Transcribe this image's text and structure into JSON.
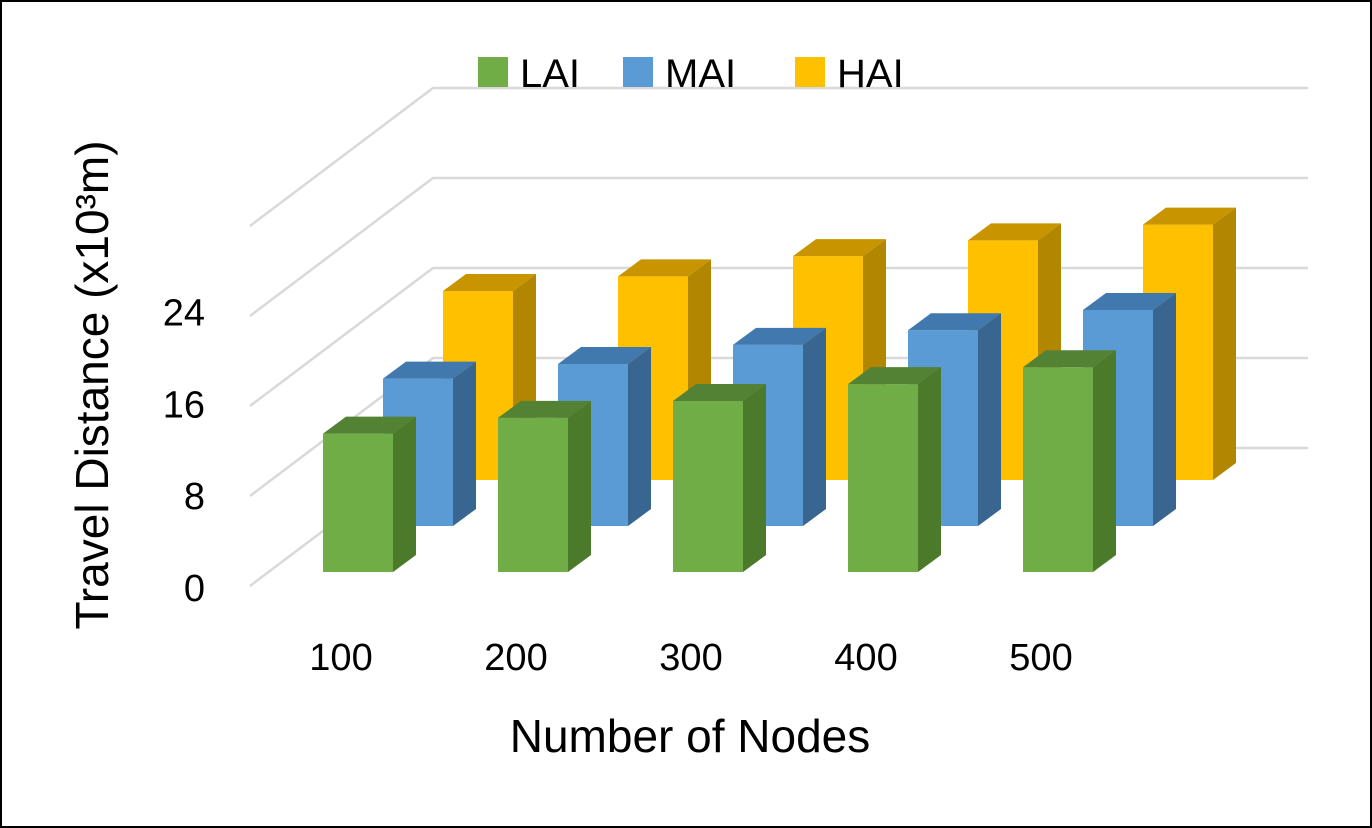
{
  "chart_data": {
    "type": "bar",
    "subtype": "3d-clustered-column",
    "title": "",
    "xlabel": "Number of Nodes",
    "ylabel": "Travel Distance (x10³m)",
    "categories": [
      "100",
      "200",
      "300",
      "400",
      "500"
    ],
    "yticks": [
      "0",
      "8",
      "16",
      "24"
    ],
    "ylim": [
      0,
      32
    ],
    "grid": true,
    "legend": "top-center",
    "series": [
      {
        "name": "LAI",
        "values": [
          12.3,
          13.7,
          15.2,
          16.7,
          18.2
        ],
        "color": "#70ad47",
        "side_color": "#4a7a2a",
        "top_color": "#548235"
      },
      {
        "name": "MAI",
        "values": [
          13.1,
          14.4,
          16.1,
          17.4,
          19.2
        ],
        "color": "#5b9bd5",
        "side_color": "#386690",
        "top_color": "#4178ae"
      },
      {
        "name": "HAI",
        "values": [
          16.8,
          18.1,
          19.9,
          21.3,
          22.7
        ],
        "color": "#ffc000",
        "side_color": "#b28600",
        "top_color": "#c89500"
      }
    ]
  }
}
